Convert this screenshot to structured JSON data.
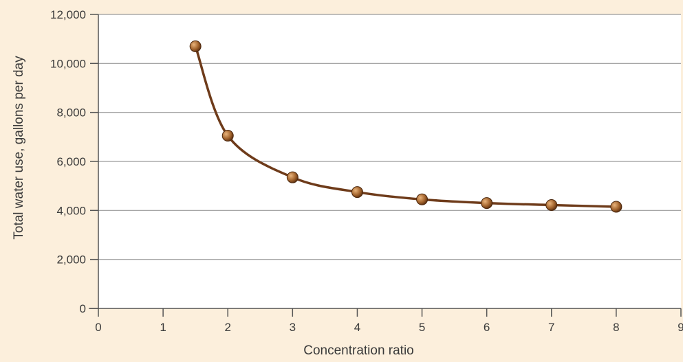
{
  "colors": {
    "background": "#fcefdc",
    "plot_background": "#ffffff",
    "gridline": "#9a9a9a",
    "axis": "#555555",
    "line": "#6e3b1a",
    "marker": "#a4652e"
  },
  "chart_data": {
    "type": "line",
    "title": "",
    "xlabel": "Concentration ratio",
    "ylabel": "Total water use, gallons per day",
    "xlim": [
      0,
      9
    ],
    "ylim": [
      0,
      12000
    ],
    "x_ticks": [
      0,
      1,
      2,
      3,
      4,
      5,
      6,
      7,
      8,
      9
    ],
    "x_tick_labels": [
      "0",
      "1",
      "2",
      "3",
      "4",
      "5",
      "6",
      "7",
      "8",
      "9"
    ],
    "y_ticks": [
      0,
      2000,
      4000,
      6000,
      8000,
      10000,
      12000
    ],
    "y_tick_labels": [
      "0",
      "2,000",
      "4,000",
      "6,000",
      "8,000",
      "10,000",
      "12,000"
    ],
    "grid": true,
    "legend": "none",
    "series": [
      {
        "x": [
          1.5,
          2,
          3,
          4,
          5,
          6,
          7,
          8
        ],
        "values": [
          10700,
          7050,
          5350,
          4750,
          4450,
          4300,
          4220,
          4150
        ]
      }
    ]
  }
}
